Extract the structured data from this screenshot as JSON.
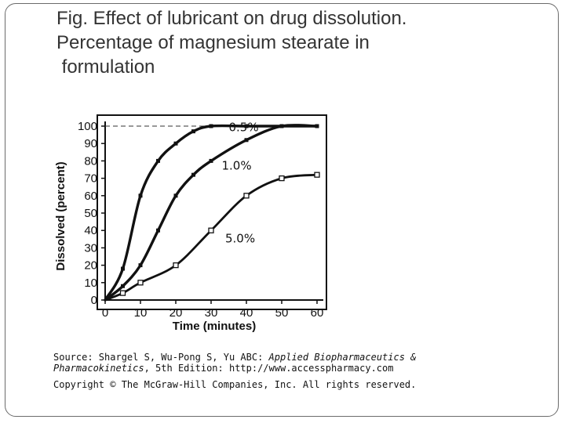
{
  "slide": {
    "title_lines": [
      "Fig. Effect of lubricant on drug dissolution.",
      "Percentage of magnesium stearate in",
      " formulation"
    ]
  },
  "chart_data": {
    "type": "line",
    "title": "",
    "xlabel": "Time (minutes)",
    "ylabel": "Dissolved (percent)",
    "xlim": [
      0,
      60
    ],
    "ylim": [
      0,
      100
    ],
    "x_ticks": [
      0,
      10,
      20,
      30,
      40,
      50,
      60
    ],
    "y_ticks": [
      0,
      10,
      20,
      30,
      40,
      50,
      60,
      70,
      80,
      90,
      100
    ],
    "grid": false,
    "reference_line": {
      "y": 100,
      "style": "dashed"
    },
    "series": [
      {
        "name": "0.5%",
        "x": [
          0,
          5,
          10,
          15,
          20,
          25,
          30,
          40,
          50,
          60
        ],
        "y": [
          0,
          18,
          60,
          80,
          90,
          97,
          100,
          100,
          100,
          100
        ]
      },
      {
        "name": "1.0%",
        "x": [
          0,
          5,
          10,
          15,
          20,
          25,
          30,
          40,
          50,
          60
        ],
        "y": [
          0,
          8,
          20,
          40,
          60,
          72,
          80,
          92,
          100,
          100
        ]
      },
      {
        "name": "5.0%",
        "x": [
          0,
          5,
          10,
          20,
          30,
          40,
          50,
          60
        ],
        "y": [
          0,
          4,
          10,
          20,
          40,
          60,
          70,
          72
        ]
      }
    ]
  },
  "caption": {
    "source_lead": "Source: Shargel S, Wu-Pong S, Yu ABC: ",
    "source_title_1": "Applied Biopharmaceutics &",
    "source_title_2": "Pharmacokinetics",
    "source_tail": ", 5th Edition: http://www.accesspharmacy.com",
    "copyright": "Copyright © The McGraw-Hill Companies, Inc. All rights reserved."
  }
}
